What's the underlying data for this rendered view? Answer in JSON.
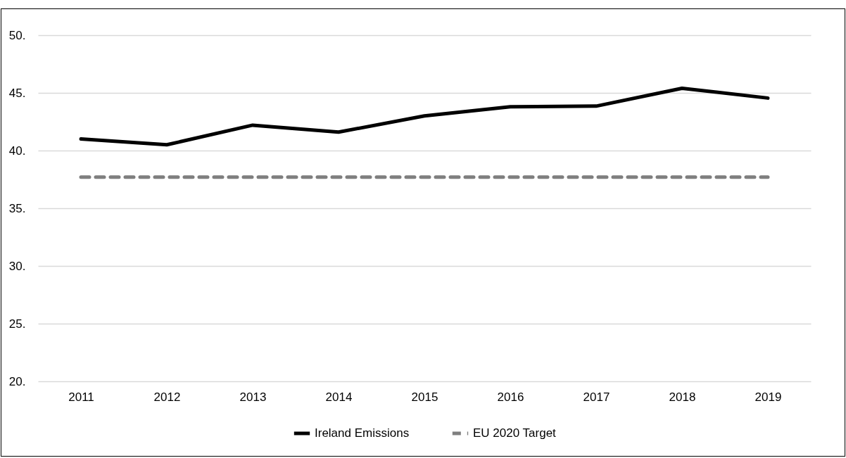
{
  "chart_data": {
    "type": "line",
    "categories": [
      "2011",
      "2012",
      "2013",
      "2014",
      "2015",
      "2016",
      "2017",
      "2018",
      "2019"
    ],
    "series": [
      {
        "name": "Ireland Emissions",
        "color": "#000000",
        "line_style": "solid",
        "values": [
          41.0,
          40.5,
          42.2,
          41.6,
          43.0,
          43.8,
          43.85,
          45.4,
          44.55
        ]
      },
      {
        "name": "EU 2020 Target",
        "color": "#7f7f7f",
        "line_style": "dashed",
        "values": [
          37.7,
          37.7,
          37.7,
          37.7,
          37.7,
          37.7,
          37.7,
          37.7,
          37.7
        ]
      }
    ],
    "ylim": [
      20,
      50
    ],
    "yticks": [
      {
        "value": 20,
        "label": "20."
      },
      {
        "value": 25,
        "label": "25."
      },
      {
        "value": 30,
        "label": "30."
      },
      {
        "value": 35,
        "label": "35."
      },
      {
        "value": 40,
        "label": "40."
      },
      {
        "value": 45,
        "label": "45."
      },
      {
        "value": 50,
        "label": "50."
      }
    ],
    "grid": "y",
    "legend": "bottom",
    "marker": "none"
  }
}
